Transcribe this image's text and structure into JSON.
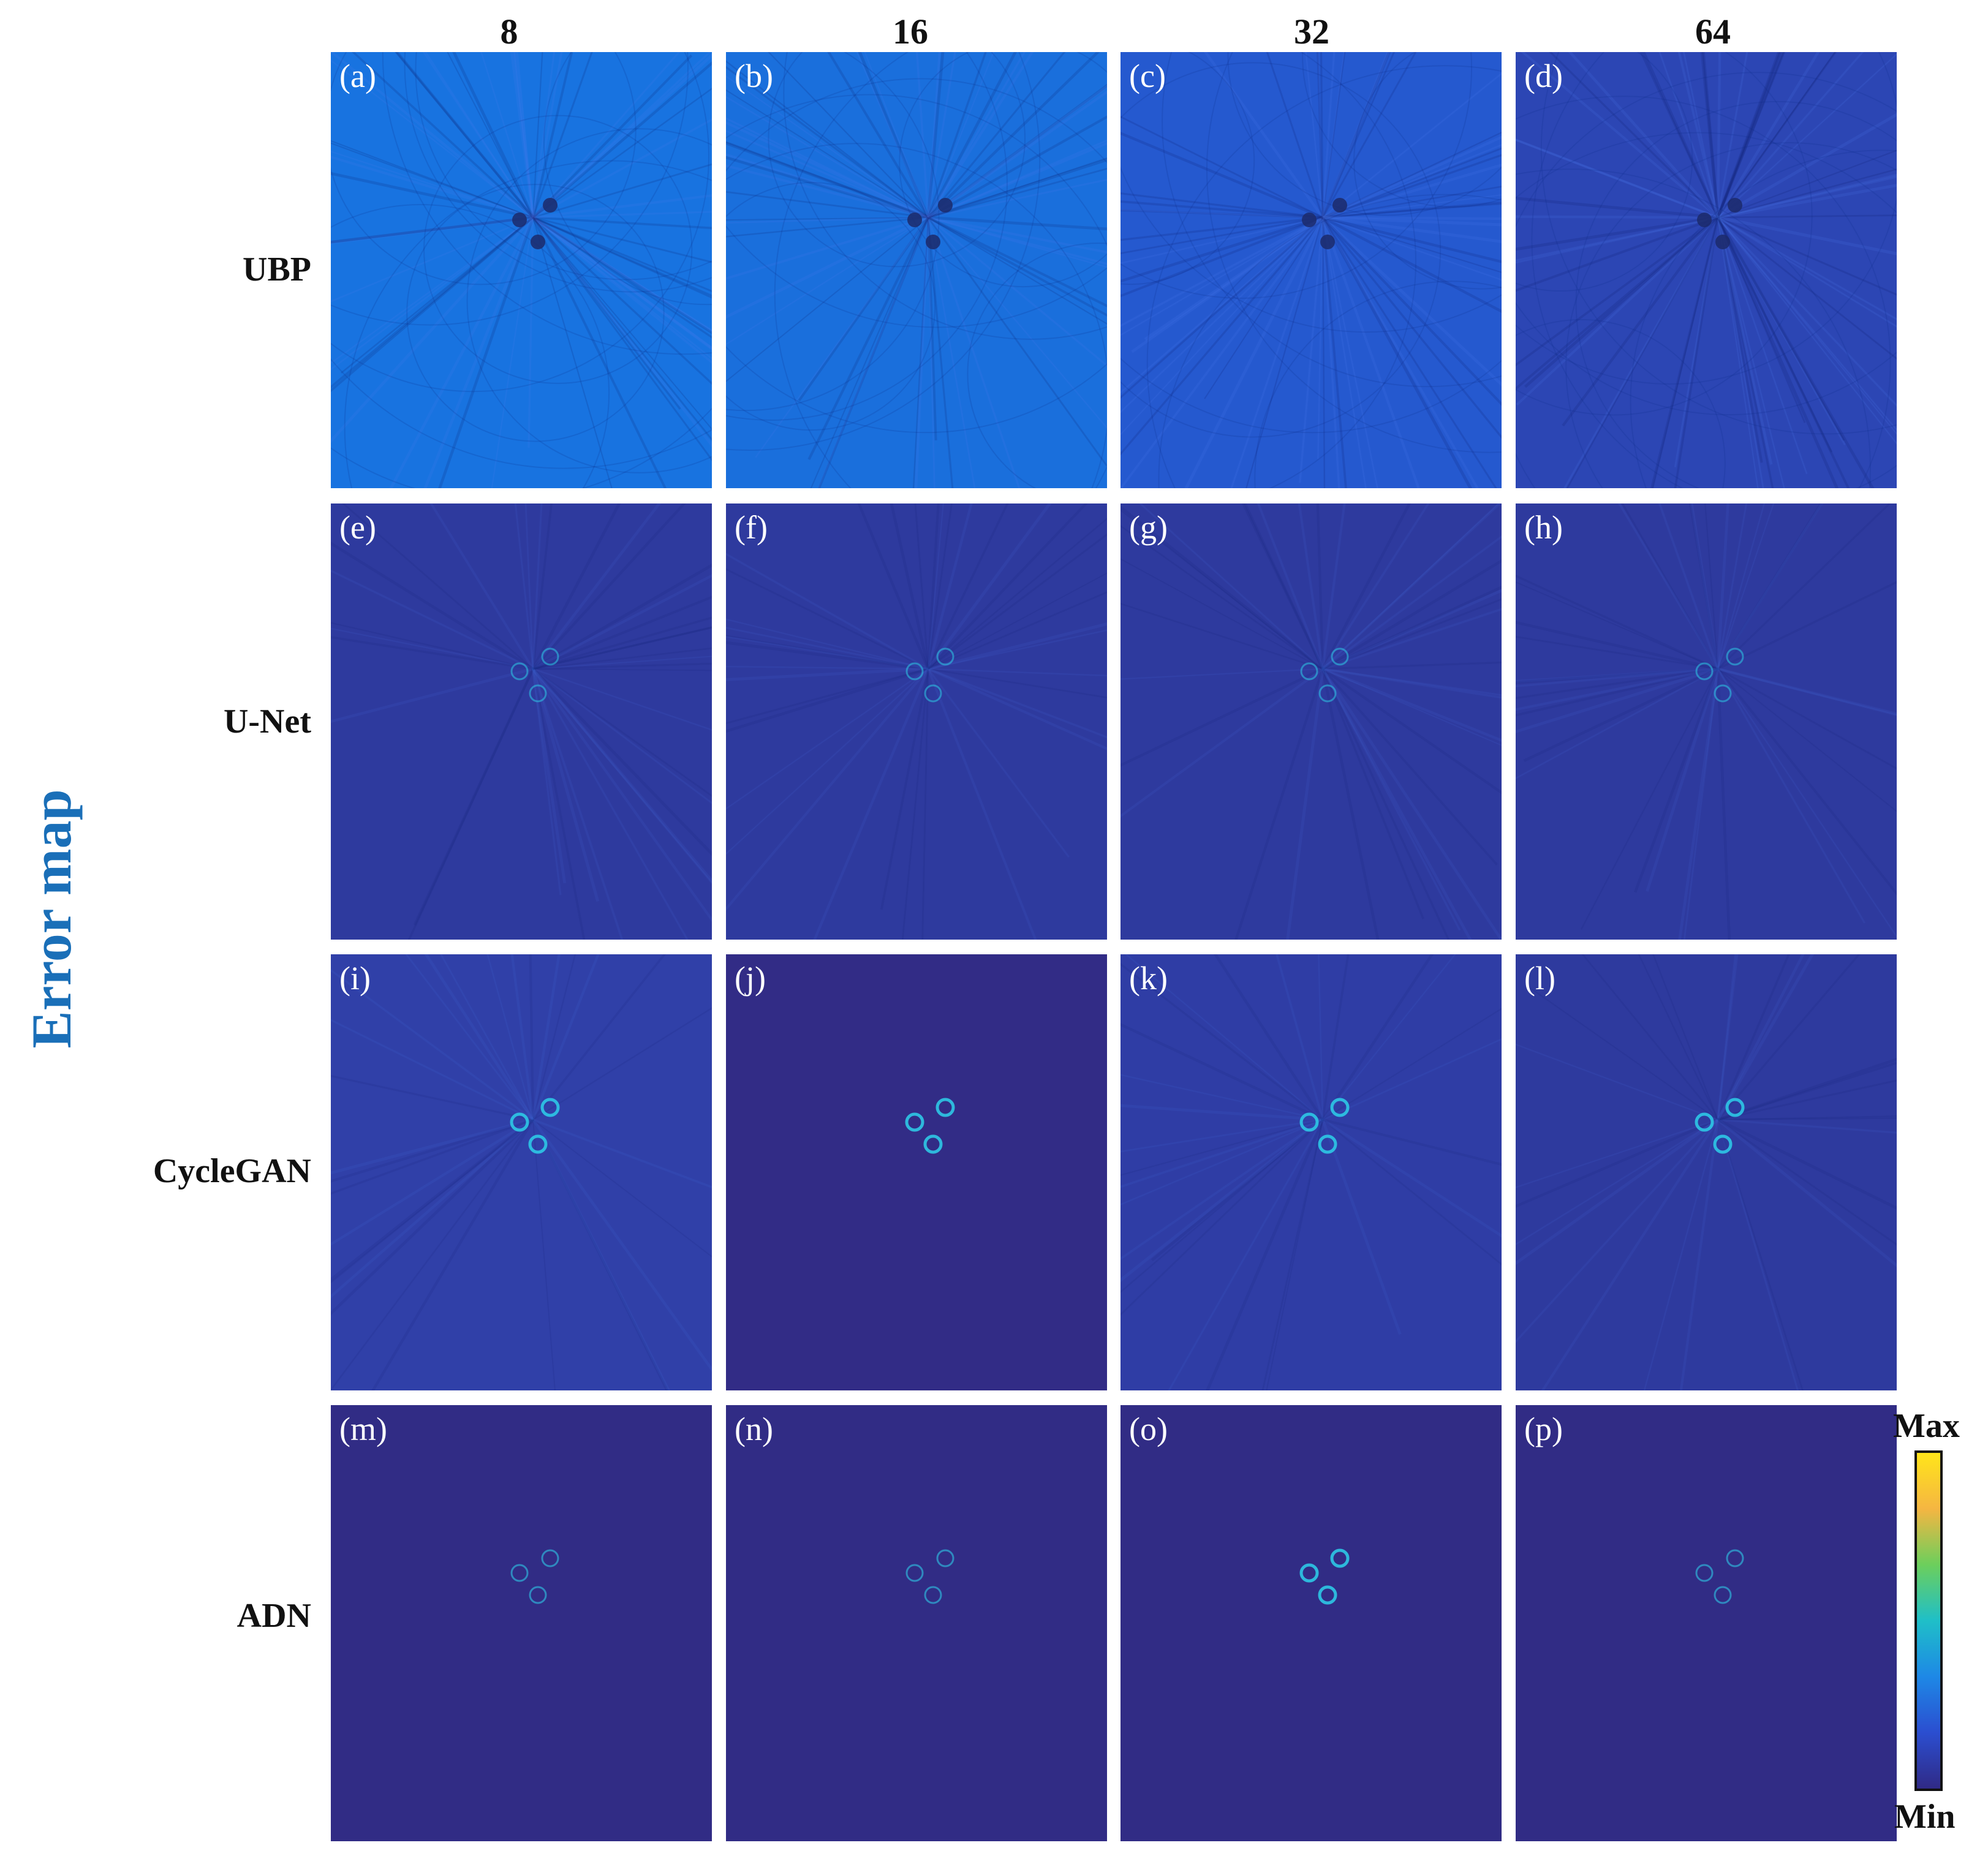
{
  "figure": {
    "side_title": "Error map",
    "columns": [
      "8",
      "16",
      "32",
      "64"
    ],
    "rows": [
      "UBP",
      "U-Net",
      "CycleGAN",
      "ADN"
    ],
    "panel_labels": [
      "(a)",
      "(b)",
      "(c)",
      "(d)",
      "(e)",
      "(f)",
      "(g)",
      "(h)",
      "(i)",
      "(j)",
      "(k)",
      "(l)",
      "(m)",
      "(n)",
      "(o)",
      "(p)"
    ],
    "colorbar": {
      "max_label": "Max",
      "min_label": "Min"
    }
  },
  "colors": {
    "side_title": "#1a6fb8",
    "ubp_8": "#1873e0",
    "ubp_16": "#1a6fdc",
    "ubp_32": "#2559cf",
    "ubp_64": "#2c46b4",
    "unet": "#2e3a9e",
    "cyclegan_8": "#3040a8",
    "cyclegan_flat": "#322c86",
    "cyclegan_32": "#2f3da5",
    "adn": "#312c85",
    "ring": "#2ec8e6",
    "colormap": [
      "#ffe51a",
      "#f5b642",
      "#6ccf5c",
      "#1fbfc8",
      "#1e88e6",
      "#2b4ed0",
      "#302a86"
    ]
  }
}
